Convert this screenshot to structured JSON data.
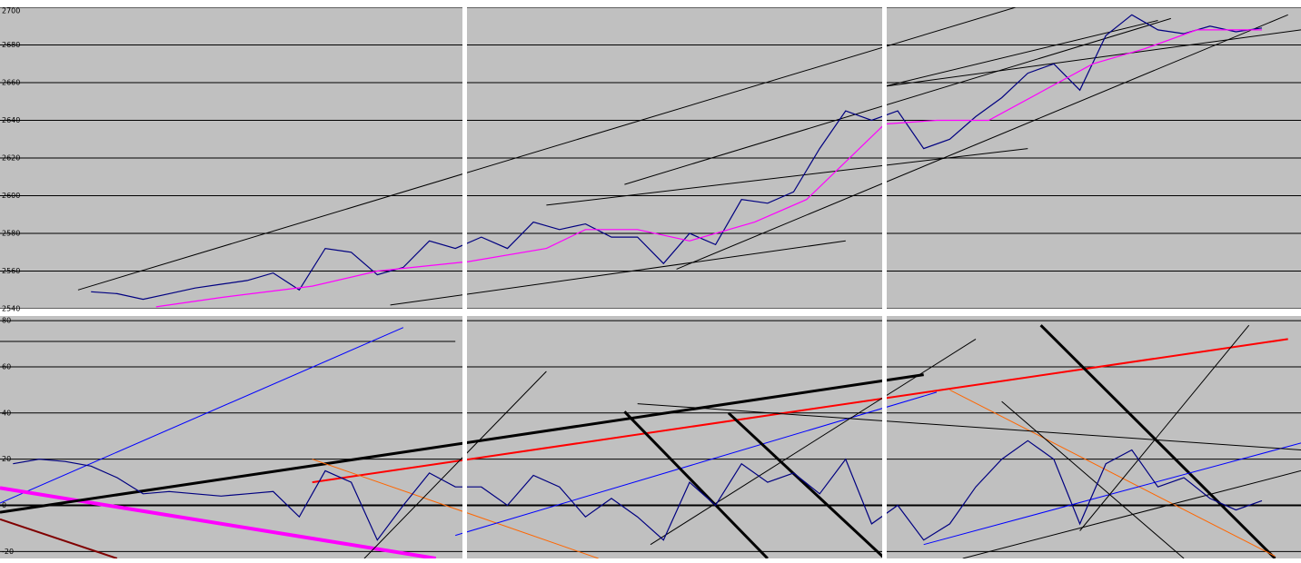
{
  "chart_data": [
    {
      "type": "line",
      "xlim": [
        0,
        100
      ],
      "ylim": [
        2540,
        2700
      ],
      "yticks": [
        2540,
        2560,
        2580,
        2600,
        2620,
        2640,
        2660,
        2680,
        2700
      ],
      "grid": true,
      "series": [
        {
          "color": "#000080",
          "x": [
            7,
            9,
            11,
            13,
            15,
            17,
            19,
            21,
            23,
            25,
            27,
            29,
            31,
            33,
            35,
            37,
            39,
            41,
            43,
            45,
            47,
            49,
            51,
            53,
            55,
            57,
            59,
            61,
            63,
            65,
            67,
            69,
            71,
            73,
            75,
            77,
            79,
            81,
            83,
            85,
            87,
            89,
            91,
            93,
            95,
            97
          ],
          "values": [
            2549,
            2548,
            2545,
            2548,
            2551,
            2553,
            2555,
            2559,
            2550,
            2572,
            2570,
            2558,
            2562,
            2576,
            2572,
            2578,
            2572,
            2586,
            2582,
            2585,
            2578,
            2578,
            2564,
            2580,
            2574,
            2598,
            2596,
            2602,
            2625,
            2645,
            2640,
            2645,
            2625,
            2630,
            2642,
            2652,
            2665,
            2670,
            2656,
            2685,
            2696,
            2688,
            2686,
            2690,
            2687,
            2689
          ]
        },
        {
          "color": "#ff00ff",
          "x": [
            12,
            17,
            24,
            29,
            36,
            42,
            45,
            49,
            53,
            58,
            62,
            65,
            68,
            72,
            76,
            80,
            84,
            88,
            92,
            97
          ],
          "values": [
            2541,
            2546,
            2552,
            2560,
            2565,
            2572,
            2582,
            2582,
            2576,
            2586,
            2598,
            2618,
            2638,
            2640,
            2640,
            2655,
            2670,
            2678,
            2688,
            2688
          ]
        }
      ],
      "trendlines": [
        {
          "color": "#000000",
          "width": 1,
          "x": [
            6,
            80
          ],
          "values": [
            2550,
            2704
          ]
        },
        {
          "color": "#000000",
          "width": 1,
          "x": [
            30,
            65
          ],
          "values": [
            2542,
            2576
          ]
        },
        {
          "color": "#000000",
          "width": 1,
          "x": [
            48,
            90
          ],
          "values": [
            2606,
            2694
          ]
        },
        {
          "color": "#000000",
          "width": 1,
          "x": [
            42,
            79
          ],
          "values": [
            2595,
            2625
          ]
        },
        {
          "color": "#000000",
          "width": 1,
          "x": [
            52,
            99
          ],
          "values": [
            2561,
            2696
          ]
        },
        {
          "color": "#000000",
          "width": 1,
          "x": [
            68,
            100
          ],
          "values": [
            2658,
            2688
          ]
        },
        {
          "color": "#000000",
          "width": 1,
          "x": [
            68,
            89
          ],
          "values": [
            2658,
            2693
          ]
        }
      ]
    },
    {
      "type": "line",
      "xlim": [
        0,
        100
      ],
      "ylim": [
        -23,
        82
      ],
      "yticks": [
        -20,
        0,
        20,
        40,
        60,
        80
      ],
      "grid": true,
      "series": [
        {
          "color": "#000080",
          "x": [
            1,
            3,
            5,
            7,
            9,
            11,
            13,
            15,
            17,
            19,
            21,
            23,
            25,
            27,
            29,
            31,
            33,
            35,
            37,
            39,
            41,
            43,
            45,
            47,
            49,
            51,
            53,
            55,
            57,
            59,
            61,
            63,
            65,
            67,
            69,
            71,
            73,
            75,
            77,
            79,
            81,
            83,
            85,
            87,
            89,
            91,
            93,
            95,
            97
          ],
          "values": [
            18,
            20,
            19,
            17,
            12,
            5,
            6,
            5,
            4,
            5,
            6,
            -5,
            15,
            10,
            -15,
            0,
            14,
            8,
            8,
            0,
            13,
            8,
            -5,
            3,
            -5,
            -15,
            10,
            0,
            18,
            10,
            14,
            5,
            20,
            -8,
            0,
            -15,
            -8,
            8,
            20,
            28,
            20,
            -8,
            18,
            24,
            8,
            12,
            3,
            -2,
            2
          ]
        }
      ],
      "trendlines": [
        {
          "color": "#000000",
          "width": 1,
          "x": [
            0,
            35
          ],
          "values": [
            71,
            71
          ]
        },
        {
          "color": "#0000ff",
          "width": 1,
          "x": [
            0,
            31
          ],
          "values": [
            1,
            77
          ]
        },
        {
          "color": "#ff00ff",
          "width": 4,
          "x": [
            0,
            33.5
          ],
          "values": [
            7.5,
            -23
          ]
        },
        {
          "color": "#800000",
          "width": 2,
          "x": [
            0,
            9
          ],
          "values": [
            -6,
            -23
          ]
        },
        {
          "color": "#000000",
          "width": 3,
          "x": [
            0,
            71
          ],
          "values": [
            -3,
            56.6
          ]
        },
        {
          "color": "#ff0000",
          "width": 2,
          "x": [
            24,
            99
          ],
          "values": [
            10,
            72
          ]
        },
        {
          "color": "#ff6600",
          "width": 1,
          "x": [
            24,
            46
          ],
          "values": [
            20,
            -23
          ]
        },
        {
          "color": "#0000ff",
          "width": 1,
          "x": [
            35,
            72
          ],
          "values": [
            -13,
            49
          ]
        },
        {
          "color": "#000000",
          "width": 3,
          "x": [
            48,
            59
          ],
          "values": [
            40.6,
            -23
          ]
        },
        {
          "color": "#000000",
          "width": 3,
          "x": [
            56,
            68
          ],
          "values": [
            40,
            -23
          ]
        },
        {
          "color": "#000000",
          "width": 3,
          "x": [
            80,
            98
          ],
          "values": [
            78,
            -23
          ]
        },
        {
          "color": "#ff6600",
          "width": 1,
          "x": [
            73,
            98
          ],
          "values": [
            50,
            -22
          ]
        },
        {
          "color": "#0000ff",
          "width": 1,
          "x": [
            71,
            100
          ],
          "values": [
            -17,
            27
          ]
        },
        {
          "color": "#000000",
          "width": 1,
          "x": [
            49,
            100
          ],
          "values": [
            44,
            24
          ]
        },
        {
          "color": "#000000",
          "width": 1,
          "x": [
            77,
            91
          ],
          "values": [
            45,
            -23
          ]
        },
        {
          "color": "#000000",
          "width": 1,
          "x": [
            83,
            96
          ],
          "values": [
            -11,
            78
          ]
        },
        {
          "color": "#000000",
          "width": 1,
          "x": [
            28,
            42
          ],
          "values": [
            -23,
            58
          ]
        },
        {
          "color": "#000000",
          "width": 1,
          "x": [
            74,
            100
          ],
          "values": [
            -23,
            15
          ]
        },
        {
          "color": "#000000",
          "width": 1,
          "x": [
            50,
            75
          ],
          "values": [
            -17,
            72
          ]
        }
      ]
    }
  ]
}
